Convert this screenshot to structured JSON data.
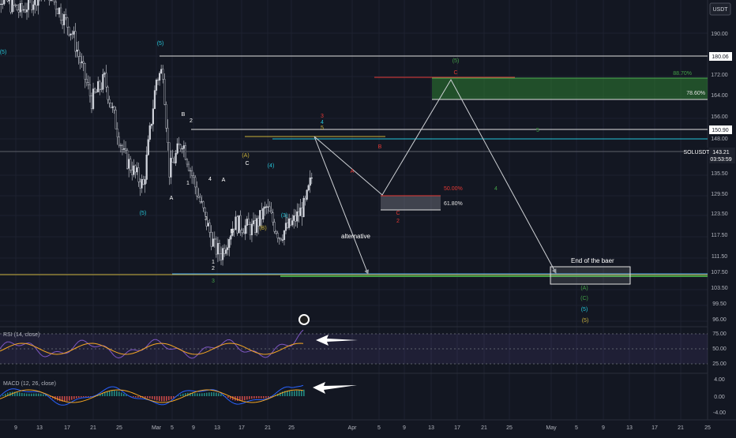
{
  "chart_data": {
    "type": "candlestick",
    "currency": "USDT",
    "symbol_tag": "SOLUSDT",
    "last_price": "143.21",
    "countdown": "03:53:59",
    "price_ticks": [
      "190.00",
      "180.06",
      "172.00",
      "164.00",
      "156.00",
      "150.90",
      "148.00",
      "143.21",
      "135.50",
      "129.50",
      "123.50",
      "117.50",
      "111.50",
      "107.50",
      "103.50",
      "99.50",
      "96.00"
    ],
    "x_ticks": [
      "9",
      "13",
      "17",
      "21",
      "25",
      "Mar",
      "5",
      "9",
      "13",
      "17",
      "21",
      "25",
      "Apr",
      "5",
      "9",
      "13",
      "17",
      "21",
      "25",
      "May",
      "5",
      "9",
      "13",
      "17",
      "21",
      "25"
    ],
    "levels": [
      {
        "price": 180.06,
        "label": "180.06",
        "color": "#ffffff"
      },
      {
        "price": 150.9,
        "label": "150.90",
        "color": "#ffffff"
      },
      {
        "price": 143.21,
        "label": "",
        "color": "#787b86"
      }
    ],
    "fib_labels": [
      "88.70%",
      "78.60%",
      "50.00%",
      "61.80%"
    ],
    "wave_labels": [
      "(5)",
      "B",
      "2",
      "1",
      "A",
      "4",
      "A",
      "C",
      "3",
      "B",
      "(A)",
      "(B)",
      "(4)",
      "(3)",
      "(5)",
      "1",
      "2",
      "3",
      "4",
      "5",
      "B",
      "A",
      "C",
      "(5)",
      "C",
      "2",
      "5",
      "4",
      "3"
    ],
    "annotations": [
      "alternative",
      "End of the baer"
    ],
    "price_series": [
      {
        "date": "Feb 3",
        "close": 205
      },
      {
        "date": "Feb 8",
        "close": 197
      },
      {
        "date": "Feb 12",
        "close": 205
      },
      {
        "date": "Feb 16",
        "close": 190
      },
      {
        "date": "Feb 19",
        "close": 168
      },
      {
        "date": "Feb 21",
        "close": 175
      },
      {
        "date": "Feb 24",
        "close": 150
      },
      {
        "date": "Feb 27",
        "close": 140
      },
      {
        "date": "Mar 1",
        "close": 175
      },
      {
        "date": "Mar 2",
        "close": 178
      },
      {
        "date": "Mar 3",
        "close": 145
      },
      {
        "date": "Mar 5",
        "close": 155
      },
      {
        "date": "Mar 7",
        "close": 140
      },
      {
        "date": "Mar 10",
        "close": 120
      },
      {
        "date": "Mar 11",
        "close": 118
      },
      {
        "date": "Mar 13",
        "close": 128
      },
      {
        "date": "Mar 16",
        "close": 126
      },
      {
        "date": "Mar 18",
        "close": 133
      },
      {
        "date": "Mar 20",
        "close": 124
      },
      {
        "date": "Mar 22",
        "close": 128
      },
      {
        "date": "Mar 24",
        "close": 134
      },
      {
        "date": "Mar 25",
        "close": 143
      }
    ],
    "projection_main": [
      {
        "date": "Mar 25",
        "price": 148
      },
      {
        "date": "Apr 5",
        "price": 130
      },
      {
        "date": "Apr 17",
        "price": 168
      },
      {
        "date": "May 5",
        "price": 106
      }
    ],
    "projection_alt": [
      {
        "date": "Mar 25",
        "price": 148
      },
      {
        "date": "Apr 2",
        "price": 107.5
      }
    ],
    "rsi": {
      "label": "RSI (14, close)",
      "ticks": [
        "75.00",
        "50.00",
        "25.00"
      ],
      "value": 70
    },
    "macd": {
      "label": "MACD (12, 26, close)",
      "ticks": [
        "4.00",
        "0.00",
        "-4.00"
      ],
      "value": 2
    }
  }
}
